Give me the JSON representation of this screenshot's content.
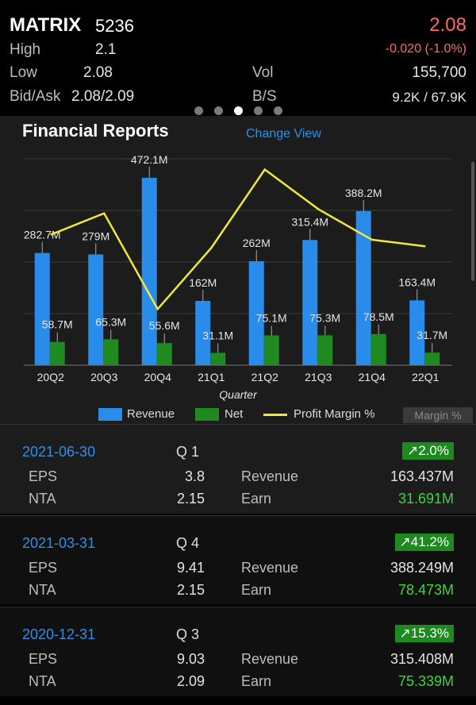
{
  "quote": {
    "name": "MATRIX",
    "code": "5236",
    "price": "2.08",
    "change": "-0.020 (-1.0%)",
    "high_label": "High",
    "high": "2.1",
    "low_label": "Low",
    "low": "2.08",
    "bidask_label": "Bid/Ask",
    "bidask": "2.08/2.09",
    "vol_label": "Vol",
    "vol": "155,700",
    "bs_label": "B/S",
    "bs": "9.2K / 67.9K",
    "page_dots": 5,
    "active_dot": 3
  },
  "report": {
    "title": "Financial Reports",
    "change_view": "Change View",
    "margin_button": "Margin %"
  },
  "chart_data": {
    "type": "bar",
    "xlabel": "Quarter",
    "categories": [
      "20Q2",
      "20Q3",
      "20Q4",
      "21Q1",
      "21Q2",
      "21Q3",
      "21Q4",
      "22Q1"
    ],
    "series": [
      {
        "name": "Revenue",
        "color": "#2a8cea",
        "values": [
          282.7,
          279,
          472.1,
          162,
          262,
          315.4,
          388.2,
          163.4
        ],
        "labels": [
          "282.7M",
          "279M",
          "472.1M",
          "162M",
          "262M",
          "315.4M",
          "388.2M",
          "163.4M"
        ]
      },
      {
        "name": "Net",
        "color": "#1f8a1f",
        "values": [
          58.7,
          65.3,
          55.6,
          31.1,
          75.1,
          75.3,
          78.5,
          31.7
        ],
        "labels": [
          "58.7M",
          "65.3M",
          "55.6M",
          "31.1M",
          "75.1M",
          "75.3M",
          "78.5M",
          "31.7M"
        ]
      },
      {
        "name": "Profit Margin %",
        "color": "#f1e83a",
        "type": "line",
        "values": [
          20.8,
          23.4,
          11.8,
          19.2,
          28.7,
          23.9,
          20.2,
          19.4
        ]
      }
    ],
    "ylim": [
      0,
      520
    ],
    "margin_ylim": [
      5,
      30
    ],
    "grid": true,
    "legend": "bottom"
  },
  "records": [
    {
      "date": "2021-06-30",
      "quarter": "Q 1",
      "change": "↗2.0%",
      "eps_label": "EPS",
      "eps": "3.8",
      "nta_label": "NTA",
      "nta": "2.15",
      "revenue_label": "Revenue",
      "revenue": "163.437M",
      "earn_label": "Earn",
      "earn": "31.691M"
    },
    {
      "date": "2021-03-31",
      "quarter": "Q 4",
      "change": "↗41.2%",
      "eps_label": "EPS",
      "eps": "9.41",
      "nta_label": "NTA",
      "nta": "2.15",
      "revenue_label": "Revenue",
      "revenue": "388.249M",
      "earn_label": "Earn",
      "earn": "78.473M"
    },
    {
      "date": "2020-12-31",
      "quarter": "Q 3",
      "change": "↗15.3%",
      "eps_label": "EPS",
      "eps": "9.03",
      "nta_label": "NTA",
      "nta": "2.09",
      "revenue_label": "Revenue",
      "revenue": "315.408M",
      "earn_label": "Earn",
      "earn": "75.339M"
    }
  ]
}
